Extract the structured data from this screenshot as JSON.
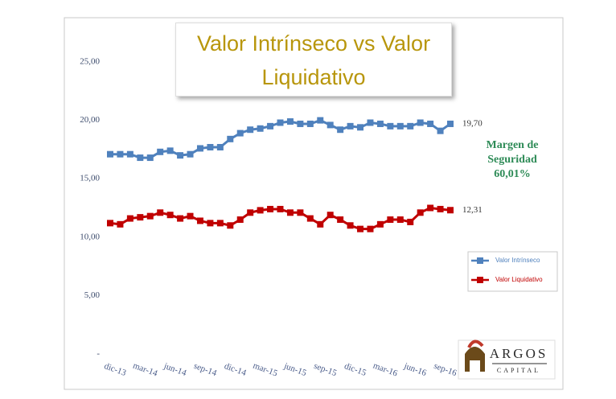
{
  "chart_data": {
    "type": "line",
    "title": "Valor Intrínseco vs Valor Liquidativo",
    "categories": [
      "dic-13",
      null,
      null,
      "mar-14",
      null,
      null,
      "jun-14",
      null,
      null,
      "sep-14",
      null,
      null,
      "dic-14",
      null,
      null,
      "mar-15",
      null,
      null,
      "jun-15",
      null,
      null,
      "sep-15",
      null,
      null,
      "dic-15",
      null,
      null,
      "mar-16",
      null,
      null,
      "jun-16",
      null,
      null,
      "sep-16",
      null
    ],
    "series": [
      {
        "name": "Valor Intrínseco",
        "color": "#4f81bd",
        "values": [
          17.1,
          17.1,
          17.1,
          16.8,
          16.8,
          17.3,
          17.4,
          17.0,
          17.1,
          17.6,
          17.7,
          17.7,
          18.4,
          18.9,
          19.2,
          19.3,
          19.5,
          19.8,
          19.9,
          19.7,
          19.7,
          20.0,
          19.6,
          19.2,
          19.5,
          19.4,
          19.8,
          19.7,
          19.5,
          19.5,
          19.5,
          19.8,
          19.7,
          19.1,
          19.7
        ],
        "value_labels": [
          null,
          null,
          null,
          null,
          null,
          null,
          null,
          null,
          null,
          null,
          null,
          null,
          null,
          null,
          null,
          null,
          null,
          null,
          null,
          null,
          null,
          null,
          null,
          null,
          null,
          null,
          null,
          null,
          null,
          null,
          null,
          null,
          null,
          null,
          "19,70"
        ]
      },
      {
        "name": "Valor Liquidativo",
        "color": "#c00000",
        "values": [
          11.2,
          11.1,
          11.6,
          11.7,
          11.8,
          12.1,
          11.9,
          11.6,
          11.8,
          11.4,
          11.2,
          11.2,
          11.0,
          11.5,
          12.1,
          12.3,
          12.4,
          12.4,
          12.1,
          12.1,
          11.6,
          11.1,
          11.9,
          11.5,
          11.0,
          10.7,
          10.7,
          11.1,
          11.5,
          11.5,
          11.3,
          12.1,
          12.5,
          12.4,
          12.31
        ],
        "value_labels": [
          null,
          null,
          null,
          null,
          null,
          null,
          null,
          null,
          null,
          null,
          null,
          null,
          null,
          null,
          null,
          null,
          null,
          null,
          null,
          null,
          null,
          null,
          null,
          null,
          null,
          null,
          null,
          null,
          null,
          null,
          null,
          null,
          null,
          null,
          "12,31"
        ]
      }
    ],
    "ylim": [
      0,
      25
    ],
    "yticks": [
      {
        "value": 0,
        "label": "-"
      },
      {
        "value": 5,
        "label": "5,00"
      },
      {
        "value": 10,
        "label": "10,00"
      },
      {
        "value": 15,
        "label": "15,00"
      },
      {
        "value": 20,
        "label": "20,00"
      },
      {
        "value": 25,
        "label": "25,00"
      }
    ],
    "grid": false,
    "legend": "right",
    "annotation": [
      "Margen de",
      "Seguridad",
      "60,01%"
    ],
    "logo": {
      "name": "ARGOS",
      "subtitle": "CAPITAL"
    }
  }
}
